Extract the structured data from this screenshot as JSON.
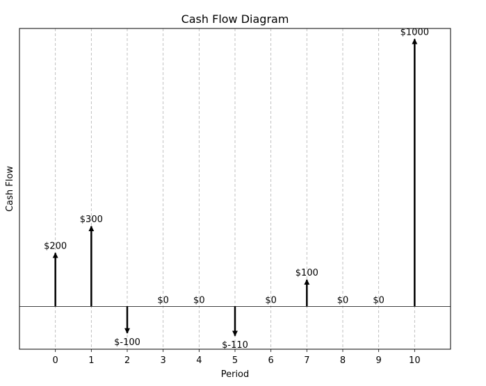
{
  "chart_data": {
    "type": "bar",
    "title": "Cash Flow Diagram",
    "xlabel": "Period",
    "ylabel": "Cash Flow",
    "x": [
      0,
      1,
      2,
      3,
      4,
      5,
      6,
      7,
      8,
      9,
      10
    ],
    "values": [
      200,
      300,
      -100,
      0,
      0,
      -110,
      0,
      100,
      0,
      0,
      1000
    ],
    "value_labels": [
      "$200",
      "$300",
      "$-100",
      "$0",
      "$0",
      "$-110",
      "$0",
      "$100",
      "$0",
      "$0",
      "$1000"
    ],
    "xlim": [
      -1,
      11
    ],
    "ylim": [
      -160,
      1040
    ],
    "grid": "vertical-dashed",
    "legend": "none",
    "mark_style": "arrows",
    "colors": {
      "arrow": "#000000",
      "grid": "#b0b0b0",
      "baseline": "#000000"
    }
  }
}
